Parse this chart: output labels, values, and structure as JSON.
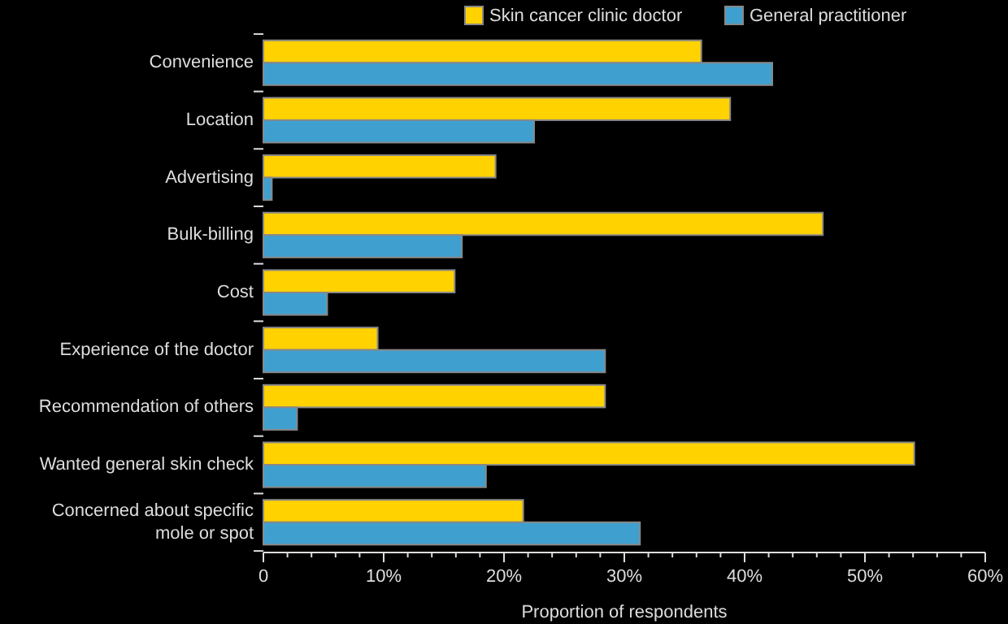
{
  "chart_data": {
    "type": "bar",
    "orientation": "horizontal",
    "xlabel": "Proportion of respondents",
    "categories": [
      "Convenience",
      "Location",
      "Advertising",
      "Bulk-billing",
      "Cost",
      "Experience of the doctor",
      "Recommendation of others",
      "Wanted general skin check",
      "Concerned about specific\nmole or spot"
    ],
    "series": [
      {
        "name": "Skin cancer clinic doctor",
        "color": "#ffd200",
        "values": [
          36.4,
          38.8,
          19.3,
          46.5,
          15.9,
          9.5,
          28.4,
          54.1,
          21.6
        ]
      },
      {
        "name": "General practitioner",
        "color": "#3fa0d0",
        "values": [
          42.3,
          22.5,
          0.7,
          16.5,
          5.3,
          28.4,
          2.8,
          18.5,
          31.3
        ]
      }
    ],
    "xlim": [
      0,
      60
    ],
    "xticks": [
      {
        "value": 0,
        "label": "0"
      },
      {
        "value": 10,
        "label": "10%"
      },
      {
        "value": 20,
        "label": "20%"
      },
      {
        "value": 30,
        "label": "30%"
      },
      {
        "value": 40,
        "label": "40%"
      },
      {
        "value": 50,
        "label": "50%"
      },
      {
        "value": 60,
        "label": "60%"
      }
    ],
    "grid": false,
    "legend": "top right"
  }
}
